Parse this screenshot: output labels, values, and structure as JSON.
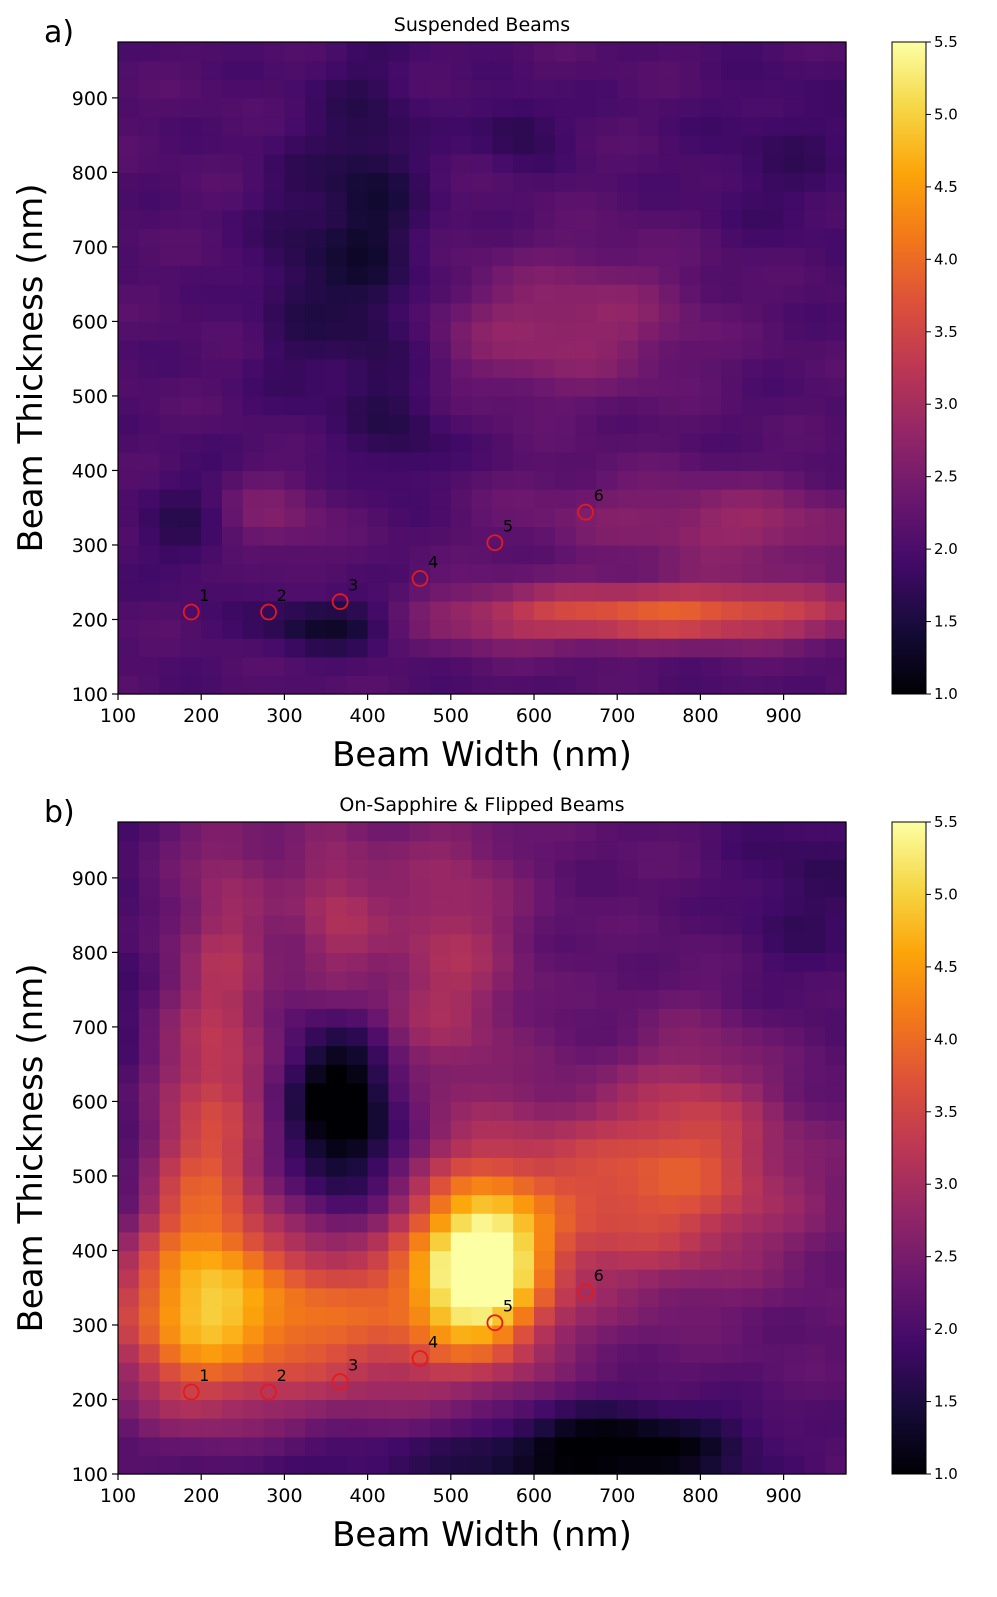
{
  "chart_data": [
    {
      "type": "heatmap",
      "panel_label": "a)",
      "title": "Suspended Beams",
      "xlabel": "Beam Width (nm)",
      "ylabel": "Beam Thickness (nm)",
      "xlim": [
        100,
        975
      ],
      "ylim": [
        100,
        975
      ],
      "xticks": [
        100,
        200,
        300,
        400,
        500,
        600,
        700,
        800,
        900
      ],
      "yticks": [
        100,
        200,
        300,
        400,
        500,
        600,
        700,
        800,
        900
      ],
      "colormap": "inferno",
      "colorbar_range": [
        1.0,
        5.5
      ],
      "colorbar_ticks": [
        "1.0",
        "1.5",
        "2.0",
        "2.5",
        "3.0",
        "3.5",
        "4.0",
        "4.5",
        "5.0",
        "5.5"
      ],
      "grid_step": 25,
      "field": {
        "base": 2.05,
        "features": [
          {
            "x": 800,
            "y": 210,
            "sx": 160,
            "sy": 28,
            "a": 1.7
          },
          {
            "x": 560,
            "y": 200,
            "sx": 110,
            "sy": 30,
            "a": 0.6
          },
          {
            "x": 880,
            "y": 320,
            "sx": 90,
            "sy": 40,
            "a": 0.6
          },
          {
            "x": 720,
            "y": 340,
            "sx": 130,
            "sy": 45,
            "a": 0.45
          },
          {
            "x": 680,
            "y": 600,
            "sx": 90,
            "sy": 70,
            "a": 0.65
          },
          {
            "x": 560,
            "y": 580,
            "sx": 70,
            "sy": 60,
            "a": 0.4
          },
          {
            "x": 280,
            "y": 340,
            "sx": 55,
            "sy": 40,
            "a": 0.55
          },
          {
            "x": 360,
            "y": 195,
            "sx": 60,
            "sy": 25,
            "a": -0.85
          },
          {
            "x": 400,
            "y": 720,
            "sx": 45,
            "sy": 160,
            "a": -0.65
          },
          {
            "x": 310,
            "y": 660,
            "sx": 35,
            "sy": 120,
            "a": -0.35
          },
          {
            "x": 190,
            "y": 330,
            "sx": 40,
            "sy": 50,
            "a": -0.45
          },
          {
            "x": 580,
            "y": 860,
            "sx": 35,
            "sy": 30,
            "a": -0.45
          },
          {
            "x": 450,
            "y": 450,
            "sx": 40,
            "sy": 60,
            "a": -0.3
          },
          {
            "x": 900,
            "y": 820,
            "sx": 70,
            "sy": 80,
            "a": -0.25
          }
        ]
      },
      "markers": [
        {
          "label": "1",
          "x": 188,
          "y": 210
        },
        {
          "label": "2",
          "x": 281,
          "y": 210
        },
        {
          "label": "3",
          "x": 367,
          "y": 224
        },
        {
          "label": "4",
          "x": 463,
          "y": 255
        },
        {
          "label": "5",
          "x": 553,
          "y": 303
        },
        {
          "label": "6",
          "x": 662,
          "y": 344
        }
      ],
      "marker_color": "#e41a1c"
    },
    {
      "type": "heatmap",
      "panel_label": "b)",
      "title": "On-Sapphire & Flipped Beams",
      "xlabel": "Beam Width (nm)",
      "ylabel": "Beam Thickness (nm)",
      "xlim": [
        100,
        975
      ],
      "ylim": [
        100,
        975
      ],
      "xticks": [
        100,
        200,
        300,
        400,
        500,
        600,
        700,
        800,
        900
      ],
      "yticks": [
        100,
        200,
        300,
        400,
        500,
        600,
        700,
        800,
        900
      ],
      "colormap": "inferno",
      "colorbar_range": [
        1.0,
        5.5
      ],
      "colorbar_ticks": [
        "1.0",
        "1.5",
        "2.0",
        "2.5",
        "3.0",
        "3.5",
        "4.0",
        "4.5",
        "5.0",
        "5.5"
      ],
      "grid_step": 25,
      "field": {
        "base": 2.15,
        "features": [
          {
            "x": 535,
            "y": 380,
            "sx": 55,
            "sy": 80,
            "a": 3.3
          },
          {
            "x": 280,
            "y": 310,
            "sx": 180,
            "sy": 80,
            "a": 2.0
          },
          {
            "x": 200,
            "y": 450,
            "sx": 50,
            "sy": 160,
            "a": 1.4
          },
          {
            "x": 230,
            "y": 780,
            "sx": 40,
            "sy": 180,
            "a": 0.8
          },
          {
            "x": 360,
            "y": 850,
            "sx": 40,
            "sy": 90,
            "a": 0.9
          },
          {
            "x": 500,
            "y": 800,
            "sx": 60,
            "sy": 140,
            "a": 0.9
          },
          {
            "x": 720,
            "y": 480,
            "sx": 140,
            "sy": 90,
            "a": 1.5
          },
          {
            "x": 800,
            "y": 600,
            "sx": 60,
            "sy": 90,
            "a": 0.6
          },
          {
            "x": 400,
            "y": 700,
            "sx": 60,
            "sy": 50,
            "a": 0.3
          },
          {
            "x": 370,
            "y": 600,
            "sx": 45,
            "sy": 90,
            "a": -1.55
          },
          {
            "x": 700,
            "y": 135,
            "sx": 110,
            "sy": 40,
            "a": -1.25
          },
          {
            "x": 420,
            "y": 120,
            "sx": 200,
            "sy": 25,
            "a": -0.4
          },
          {
            "x": 930,
            "y": 890,
            "sx": 70,
            "sy": 110,
            "a": -0.4
          },
          {
            "x": 110,
            "y": 600,
            "sx": 20,
            "sy": 300,
            "a": -0.3
          }
        ]
      },
      "markers": [
        {
          "label": "1",
          "x": 188,
          "y": 210
        },
        {
          "label": "2",
          "x": 281,
          "y": 210
        },
        {
          "label": "3",
          "x": 367,
          "y": 224
        },
        {
          "label": "4",
          "x": 463,
          "y": 255
        },
        {
          "label": "5",
          "x": 553,
          "y": 303
        },
        {
          "label": "6",
          "x": 662,
          "y": 344
        }
      ],
      "marker_color": "#e41a1c"
    }
  ]
}
